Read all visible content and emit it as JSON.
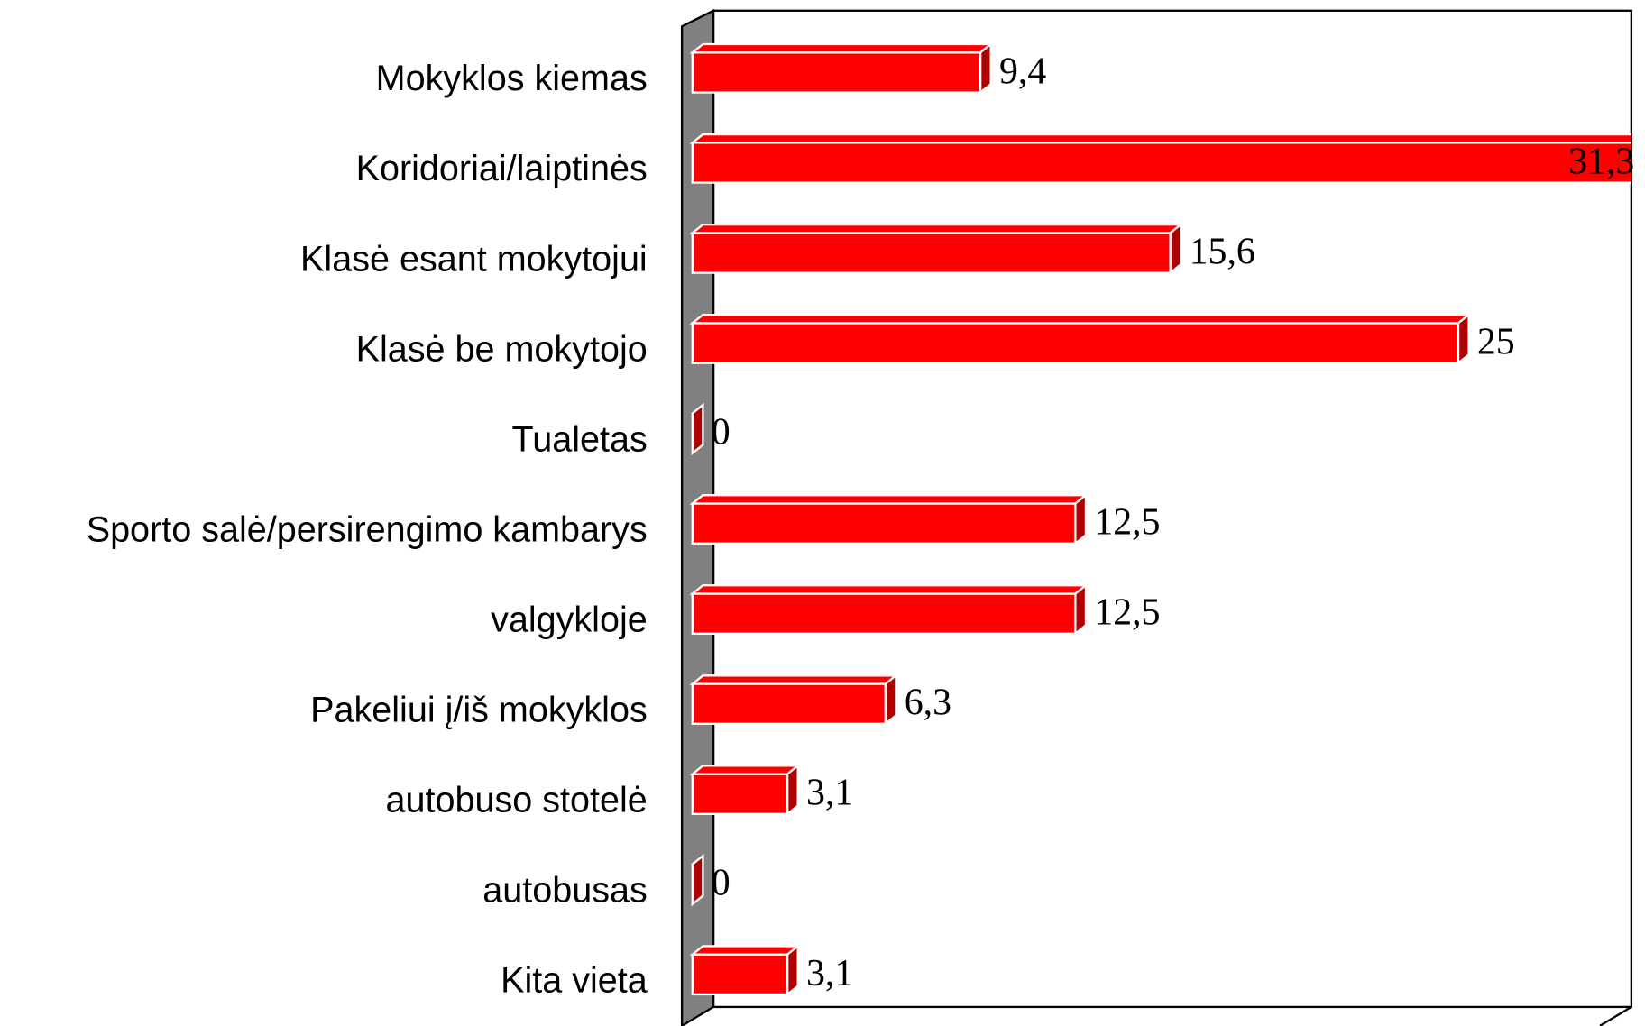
{
  "chart_data": {
    "type": "bar3d-horizontal",
    "categories": [
      "Mokyklos kiemas",
      "Koridoriai/laiptinės",
      "Klasė esant mokytojui",
      "Klasė be mokytojo",
      "Tualetas",
      "Sporto salė/persirengimo kambarys",
      "valgykloje",
      "Pakeliui į/iš mokyklos",
      "autobuso stotelė",
      "autobusas",
      "Kita vieta"
    ],
    "values": [
      9.4,
      31.3,
      15.6,
      25,
      0,
      12.5,
      12.5,
      6.3,
      3.1,
      0,
      3.1
    ],
    "value_labels": [
      "9,4",
      "31,3",
      "15,6",
      "25",
      "0",
      "12,5",
      "12,5",
      "6,3",
      "3,1",
      "0",
      "3,1"
    ],
    "color": "#ff0000",
    "xlim": [
      0,
      30
    ]
  }
}
